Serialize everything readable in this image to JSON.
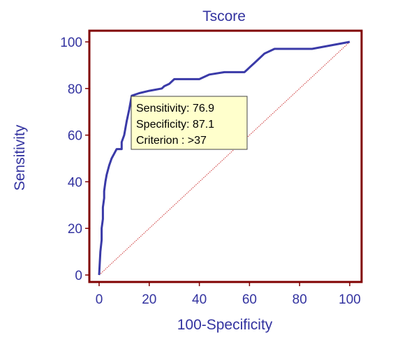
{
  "colors": {
    "frame": "#800000",
    "roc_curve": "#3a3aa8",
    "diagonal": "#cc3333",
    "text": "#3333a0",
    "tooltip_fill": "#ffffcc",
    "tooltip_border": "#444444"
  },
  "chart_data": {
    "type": "line",
    "title": "Tscore",
    "xlabel": "100-Specificity",
    "ylabel": "Sensitivity",
    "xlim": [
      0,
      100
    ],
    "ylim": [
      0,
      100
    ],
    "xticks": [
      0,
      20,
      40,
      60,
      80,
      100
    ],
    "yticks": [
      0,
      20,
      40,
      60,
      80,
      100
    ],
    "grid": false,
    "series": [
      {
        "x": [
          0,
          0.5,
          1,
          1,
          1.5,
          1.5,
          2,
          2,
          2.5,
          3,
          4,
          5,
          6,
          7,
          8,
          9,
          9,
          10,
          11,
          12,
          13,
          16,
          20,
          25,
          26,
          28,
          30,
          33,
          40,
          44,
          50,
          58,
          59,
          60,
          61,
          62,
          64,
          66,
          68,
          70,
          75,
          85,
          100
        ],
        "y": [
          0,
          10,
          15,
          20,
          24,
          29,
          33,
          36,
          40,
          43,
          47,
          50,
          52,
          54,
          54,
          54,
          57,
          60,
          66,
          71,
          76.9,
          78,
          79,
          80,
          81,
          82,
          84,
          84,
          84,
          86,
          87,
          87,
          88,
          89,
          90,
          91,
          93,
          95,
          96,
          97,
          97,
          97,
          100
        ]
      },
      {
        "x": [
          0,
          100
        ],
        "y": [
          0,
          100
        ]
      }
    ],
    "annotations": [
      {
        "text": "Sensitivity: 76.9"
      },
      {
        "text": "Specificity: 87.1"
      },
      {
        "text": "Criterion : >37"
      }
    ]
  }
}
